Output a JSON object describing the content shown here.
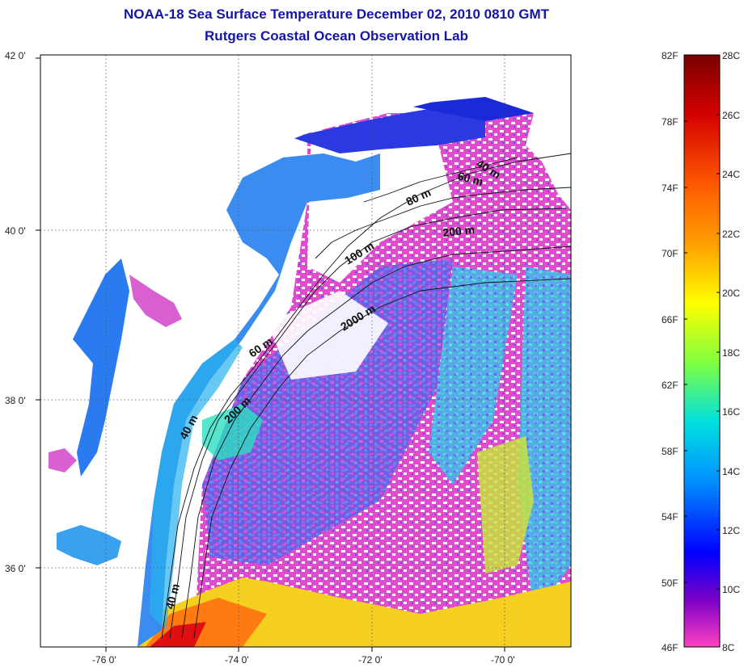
{
  "title": "NOAA-18 Sea Surface Temperature December 02, 2010 0810 GMT",
  "subtitle": "Rutgers Coastal Ocean Observation Lab",
  "map": {
    "lat_labels": [
      "42 0'",
      "40 0'",
      "38 0'",
      "36 0'"
    ],
    "lon_labels": [
      "-76 0'",
      "-74 0'",
      "-72 0'",
      "-70 0'"
    ],
    "isobaths": [
      {
        "label": "40 m"
      },
      {
        "label": "60 m"
      },
      {
        "label": "80 m"
      },
      {
        "label": "200 m"
      },
      {
        "label": "100 m"
      },
      {
        "label": "2000 m"
      },
      {
        "label": "60 m"
      },
      {
        "label": "200 m"
      },
      {
        "label": "40 m"
      },
      {
        "label": "40 m"
      }
    ]
  },
  "colorbar": {
    "f_labels": [
      "82F",
      "78F",
      "74F",
      "70F",
      "66F",
      "62F",
      "58F",
      "54F",
      "50F",
      "46F"
    ],
    "c_labels": [
      "28C",
      "26C",
      "24C",
      "22C",
      "20C",
      "18C",
      "16C",
      "14C",
      "12C",
      "10C",
      "8C"
    ],
    "colors": [
      "#7a0000",
      "#d30000",
      "#ff5a00",
      "#ffa000",
      "#ffff00",
      "#7fff40",
      "#00e0e0",
      "#0090ff",
      "#0000ff",
      "#7a00c8",
      "#ff40c0"
    ]
  }
}
